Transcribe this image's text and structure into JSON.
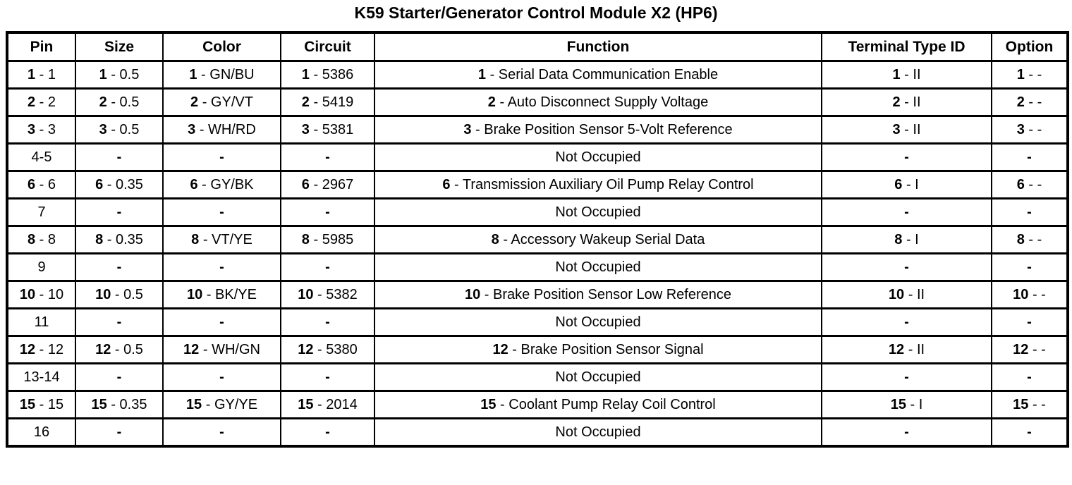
{
  "page": {
    "title": "K59 Starter/Generator Control Module X2 (HP6)"
  },
  "table": {
    "cell_separator": " - ",
    "columns": [
      {
        "key": "pin",
        "label": "Pin"
      },
      {
        "key": "size",
        "label": "Size"
      },
      {
        "key": "color",
        "label": "Color"
      },
      {
        "key": "circuit",
        "label": "Circuit"
      },
      {
        "key": "function",
        "label": "Function"
      },
      {
        "key": "terminal-type-id",
        "label": "Terminal Type ID"
      },
      {
        "key": "option",
        "label": "Option"
      }
    ],
    "rows": [
      {
        "cells": [
          {
            "prefix": "1",
            "value": "1"
          },
          {
            "prefix": "1",
            "value": "0.5"
          },
          {
            "prefix": "1",
            "value": "GN/BU"
          },
          {
            "prefix": "1",
            "value": "5386"
          },
          {
            "prefix": "1",
            "value": "Serial Data Communication Enable"
          },
          {
            "prefix": "1",
            "value": "II"
          },
          {
            "prefix": "1",
            "value": "-"
          }
        ]
      },
      {
        "cells": [
          {
            "prefix": "2",
            "value": "2"
          },
          {
            "prefix": "2",
            "value": "0.5"
          },
          {
            "prefix": "2",
            "value": "GY/VT"
          },
          {
            "prefix": "2",
            "value": "5419"
          },
          {
            "prefix": "2",
            "value": "Auto Disconnect Supply Voltage"
          },
          {
            "prefix": "2",
            "value": "II"
          },
          {
            "prefix": "2",
            "value": "-"
          }
        ]
      },
      {
        "cells": [
          {
            "prefix": "3",
            "value": "3"
          },
          {
            "prefix": "3",
            "value": "0.5"
          },
          {
            "prefix": "3",
            "value": "WH/RD"
          },
          {
            "prefix": "3",
            "value": "5381"
          },
          {
            "prefix": "3",
            "value": "Brake Position Sensor 5-Volt Reference"
          },
          {
            "prefix": "3",
            "value": "II"
          },
          {
            "prefix": "3",
            "value": "-"
          }
        ]
      },
      {
        "cells": [
          {
            "text": "4-5"
          },
          {
            "text": "-",
            "bold": true
          },
          {
            "text": "-",
            "bold": true
          },
          {
            "text": "-",
            "bold": true
          },
          {
            "text": "Not Occupied"
          },
          {
            "text": "-",
            "bold": true
          },
          {
            "text": "-",
            "bold": true
          }
        ]
      },
      {
        "cells": [
          {
            "prefix": "6",
            "value": "6"
          },
          {
            "prefix": "6",
            "value": "0.35"
          },
          {
            "prefix": "6",
            "value": "GY/BK"
          },
          {
            "prefix": "6",
            "value": "2967"
          },
          {
            "prefix": "6",
            "value": "Transmission Auxiliary Oil Pump Relay Control"
          },
          {
            "prefix": "6",
            "value": "I"
          },
          {
            "prefix": "6",
            "value": "-"
          }
        ]
      },
      {
        "cells": [
          {
            "text": "7"
          },
          {
            "text": "-",
            "bold": true
          },
          {
            "text": "-",
            "bold": true
          },
          {
            "text": "-",
            "bold": true
          },
          {
            "text": "Not Occupied"
          },
          {
            "text": "-",
            "bold": true
          },
          {
            "text": "-",
            "bold": true
          }
        ]
      },
      {
        "cells": [
          {
            "prefix": "8",
            "value": "8"
          },
          {
            "prefix": "8",
            "value": "0.35"
          },
          {
            "prefix": "8",
            "value": "VT/YE"
          },
          {
            "prefix": "8",
            "value": "5985"
          },
          {
            "prefix": "8",
            "value": "Accessory Wakeup Serial Data"
          },
          {
            "prefix": "8",
            "value": "I"
          },
          {
            "prefix": "8",
            "value": "-"
          }
        ]
      },
      {
        "cells": [
          {
            "text": "9"
          },
          {
            "text": "-",
            "bold": true
          },
          {
            "text": "-",
            "bold": true
          },
          {
            "text": "-",
            "bold": true
          },
          {
            "text": "Not Occupied"
          },
          {
            "text": "-",
            "bold": true
          },
          {
            "text": "-",
            "bold": true
          }
        ]
      },
      {
        "cells": [
          {
            "prefix": "10",
            "value": "10"
          },
          {
            "prefix": "10",
            "value": "0.5"
          },
          {
            "prefix": "10",
            "value": "BK/YE"
          },
          {
            "prefix": "10",
            "value": "5382"
          },
          {
            "prefix": "10",
            "value": "Brake Position Sensor Low Reference"
          },
          {
            "prefix": "10",
            "value": "II"
          },
          {
            "prefix": "10",
            "value": "-"
          }
        ]
      },
      {
        "cells": [
          {
            "text": "11"
          },
          {
            "text": "-",
            "bold": true
          },
          {
            "text": "-",
            "bold": true
          },
          {
            "text": "-",
            "bold": true
          },
          {
            "text": "Not Occupied"
          },
          {
            "text": "-",
            "bold": true
          },
          {
            "text": "-",
            "bold": true
          }
        ]
      },
      {
        "cells": [
          {
            "prefix": "12",
            "value": "12"
          },
          {
            "prefix": "12",
            "value": "0.5"
          },
          {
            "prefix": "12",
            "value": "WH/GN"
          },
          {
            "prefix": "12",
            "value": "5380"
          },
          {
            "prefix": "12",
            "value": "Brake Position Sensor Signal"
          },
          {
            "prefix": "12",
            "value": "II"
          },
          {
            "prefix": "12",
            "value": "-"
          }
        ]
      },
      {
        "cells": [
          {
            "text": "13-14"
          },
          {
            "text": "-",
            "bold": true
          },
          {
            "text": "-",
            "bold": true
          },
          {
            "text": "-",
            "bold": true
          },
          {
            "text": "Not Occupied"
          },
          {
            "text": "-",
            "bold": true
          },
          {
            "text": "-",
            "bold": true
          }
        ]
      },
      {
        "cells": [
          {
            "prefix": "15",
            "value": "15"
          },
          {
            "prefix": "15",
            "value": "0.35"
          },
          {
            "prefix": "15",
            "value": "GY/YE"
          },
          {
            "prefix": "15",
            "value": "2014"
          },
          {
            "prefix": "15",
            "value": "Coolant Pump Relay Coil Control"
          },
          {
            "prefix": "15",
            "value": "I"
          },
          {
            "prefix": "15",
            "value": "-"
          }
        ]
      },
      {
        "cells": [
          {
            "text": "16"
          },
          {
            "text": "-",
            "bold": true
          },
          {
            "text": "-",
            "bold": true
          },
          {
            "text": "-",
            "bold": true
          },
          {
            "text": "Not Occupied"
          },
          {
            "text": "-",
            "bold": true
          },
          {
            "text": "-",
            "bold": true
          }
        ]
      }
    ]
  }
}
